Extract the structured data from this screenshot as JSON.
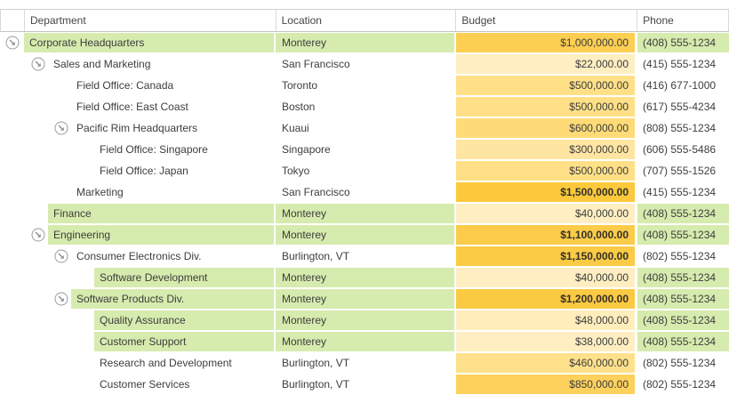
{
  "table": {
    "columns": [
      {
        "key": "department",
        "label": "Department"
      },
      {
        "key": "location",
        "label": "Location"
      },
      {
        "key": "budget",
        "label": "Budget"
      },
      {
        "key": "phone",
        "label": "Phone"
      }
    ],
    "colors": {
      "row_highlight_green": "#d6ebae",
      "budget_scale_min": "#ffeec3",
      "budget_scale_max": "#fbc93b",
      "expander_gray": "#9b9b9b",
      "header_border": "#c3c3c3"
    },
    "icons": {
      "expander": "arrow-down-right-circle-icon"
    },
    "rows": [
      {
        "department": "Corporate Headquarters",
        "level": 0,
        "expander": true,
        "location": "Monterey",
        "budget": "$1,000,000.00",
        "budget_value": 1000000,
        "budget_color": "#fcce52",
        "budget_bold": false,
        "highlight": true,
        "phone": "(408) 555-1234"
      },
      {
        "department": "Sales and Marketing",
        "level": 1,
        "expander": true,
        "location": "San Francisco",
        "budget": "$22,000.00",
        "budget_value": 22000,
        "budget_color": "#ffeec1",
        "budget_bold": false,
        "highlight": false,
        "phone": "(415) 555-1234"
      },
      {
        "department": "Field Office: Canada",
        "level": 2,
        "expander": false,
        "location": "Toronto",
        "budget": "$500,000.00",
        "budget_value": 500000,
        "budget_color": "#ffe087",
        "budget_bold": false,
        "highlight": false,
        "phone": "(416) 677-1000"
      },
      {
        "department": "Field Office: East Coast",
        "level": 2,
        "expander": false,
        "location": "Boston",
        "budget": "$500,000.00",
        "budget_value": 500000,
        "budget_color": "#ffe087",
        "budget_bold": false,
        "highlight": false,
        "phone": "(617) 555-4234"
      },
      {
        "department": "Pacific Rim Headquarters",
        "level": 2,
        "expander": true,
        "location": "Kuaui",
        "budget": "$600,000.00",
        "budget_value": 600000,
        "budget_color": "#ffdb77",
        "budget_bold": false,
        "highlight": false,
        "phone": "(808) 555-1234"
      },
      {
        "department": "Field Office: Singapore",
        "level": 3,
        "expander": false,
        "location": "Singapore",
        "budget": "$300,000.00",
        "budget_value": 300000,
        "budget_color": "#ffe5a2",
        "budget_bold": false,
        "highlight": false,
        "phone": "(606) 555-5486"
      },
      {
        "department": "Field Office: Japan",
        "level": 3,
        "expander": false,
        "location": "Tokyo",
        "budget": "$500,000.00",
        "budget_value": 500000,
        "budget_color": "#ffe087",
        "budget_bold": false,
        "highlight": false,
        "phone": "(707) 555-1526"
      },
      {
        "department": "Marketing",
        "level": 2,
        "expander": false,
        "location": "San Francisco",
        "budget": "$1,500,000.00",
        "budget_value": 1500000,
        "budget_color": "#fbc93b",
        "budget_bold": true,
        "highlight": false,
        "phone": "(415) 555-1234"
      },
      {
        "department": "Finance",
        "level": 1,
        "expander": false,
        "location": "Monterey",
        "budget": "$40,000.00",
        "budget_value": 40000,
        "budget_color": "#ffeec1",
        "budget_bold": false,
        "highlight": true,
        "phone": "(408) 555-1234"
      },
      {
        "department": "Engineering",
        "level": 1,
        "expander": true,
        "location": "Monterey",
        "budget": "$1,100,000.00",
        "budget_value": 1100000,
        "budget_color": "#fbcc4a",
        "budget_bold": true,
        "highlight": true,
        "phone": "(408) 555-1234"
      },
      {
        "department": "Consumer Electronics Div.",
        "level": 2,
        "expander": true,
        "location": "Burlington, VT",
        "budget": "$1,150,000.00",
        "budget_value": 1150000,
        "budget_color": "#fbcb46",
        "budget_bold": true,
        "highlight": false,
        "phone": "(802) 555-1234"
      },
      {
        "department": "Software Development",
        "level": 3,
        "expander": false,
        "location": "Monterey",
        "budget": "$40,000.00",
        "budget_value": 40000,
        "budget_color": "#ffeec1",
        "budget_bold": false,
        "highlight": true,
        "phone": "(408) 555-1234"
      },
      {
        "department": "Software Products Div.",
        "level": 2,
        "expander": true,
        "location": "Monterey",
        "budget": "$1,200,000.00",
        "budget_value": 1200000,
        "budget_color": "#fbca43",
        "budget_bold": true,
        "highlight": true,
        "phone": "(408) 555-1234"
      },
      {
        "department": "Quality Assurance",
        "level": 3,
        "expander": false,
        "location": "Monterey",
        "budget": "$48,000.00",
        "budget_value": 48000,
        "budget_color": "#ffedbc",
        "budget_bold": false,
        "highlight": true,
        "phone": "(408) 555-1234"
      },
      {
        "department": "Customer Support",
        "level": 3,
        "expander": false,
        "location": "Monterey",
        "budget": "$38,000.00",
        "budget_value": 38000,
        "budget_color": "#ffeec2",
        "budget_bold": false,
        "highlight": true,
        "phone": "(408) 555-1234"
      },
      {
        "department": "Research and Development",
        "level": 3,
        "expander": false,
        "location": "Burlington, VT",
        "budget": "$460,000.00",
        "budget_value": 460000,
        "budget_color": "#ffe18c",
        "budget_bold": false,
        "highlight": false,
        "phone": "(802) 555-1234"
      },
      {
        "department": "Customer Services",
        "level": 3,
        "expander": false,
        "location": "Burlington, VT",
        "budget": "$850,000.00",
        "budget_value": 850000,
        "budget_color": "#fdd15c",
        "budget_bold": false,
        "highlight": false,
        "phone": "(802) 555-1234"
      }
    ]
  }
}
